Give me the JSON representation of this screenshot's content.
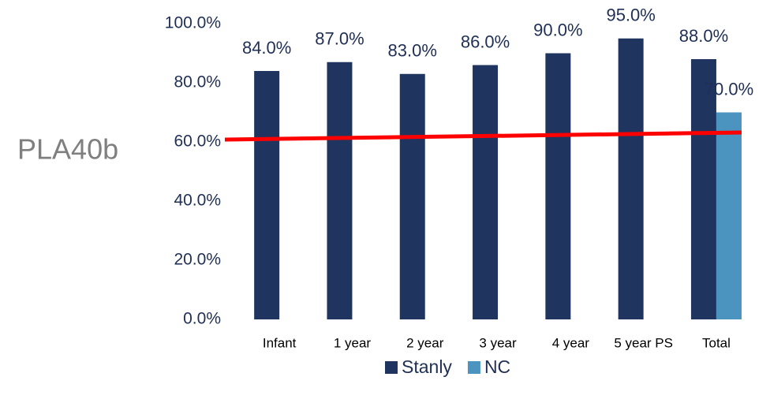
{
  "chart_data": {
    "type": "bar",
    "side_label": "PLA40b",
    "categories": [
      "Infant",
      "1 year",
      "2 year",
      "3 year",
      "4 year",
      "5 year PS",
      "Total"
    ],
    "series": [
      {
        "name": "Stanly",
        "color": "#1f3560",
        "values": [
          84,
          87,
          83,
          86,
          90,
          95,
          88
        ],
        "value_labels": [
          "84.0%",
          "87.0%",
          "83.0%",
          "86.0%",
          "90.0%",
          "95.0%",
          "88.0%"
        ]
      },
      {
        "name": "NC",
        "color": "#4a94bf",
        "values": [
          null,
          null,
          null,
          null,
          null,
          null,
          70
        ],
        "value_labels": [
          null,
          null,
          null,
          null,
          null,
          null,
          "70.0%"
        ]
      }
    ],
    "ylim": [
      0,
      100
    ],
    "yticks": [
      {
        "value": 0,
        "label": "0.0%"
      },
      {
        "value": 20,
        "label": "20.0%"
      },
      {
        "value": 40,
        "label": "40.0%"
      },
      {
        "value": 60,
        "label": "60.0%"
      },
      {
        "value": 80,
        "label": "80.0%"
      },
      {
        "value": 100,
        "label": "100.0%"
      }
    ],
    "grid": false,
    "legend": "bottom"
  }
}
